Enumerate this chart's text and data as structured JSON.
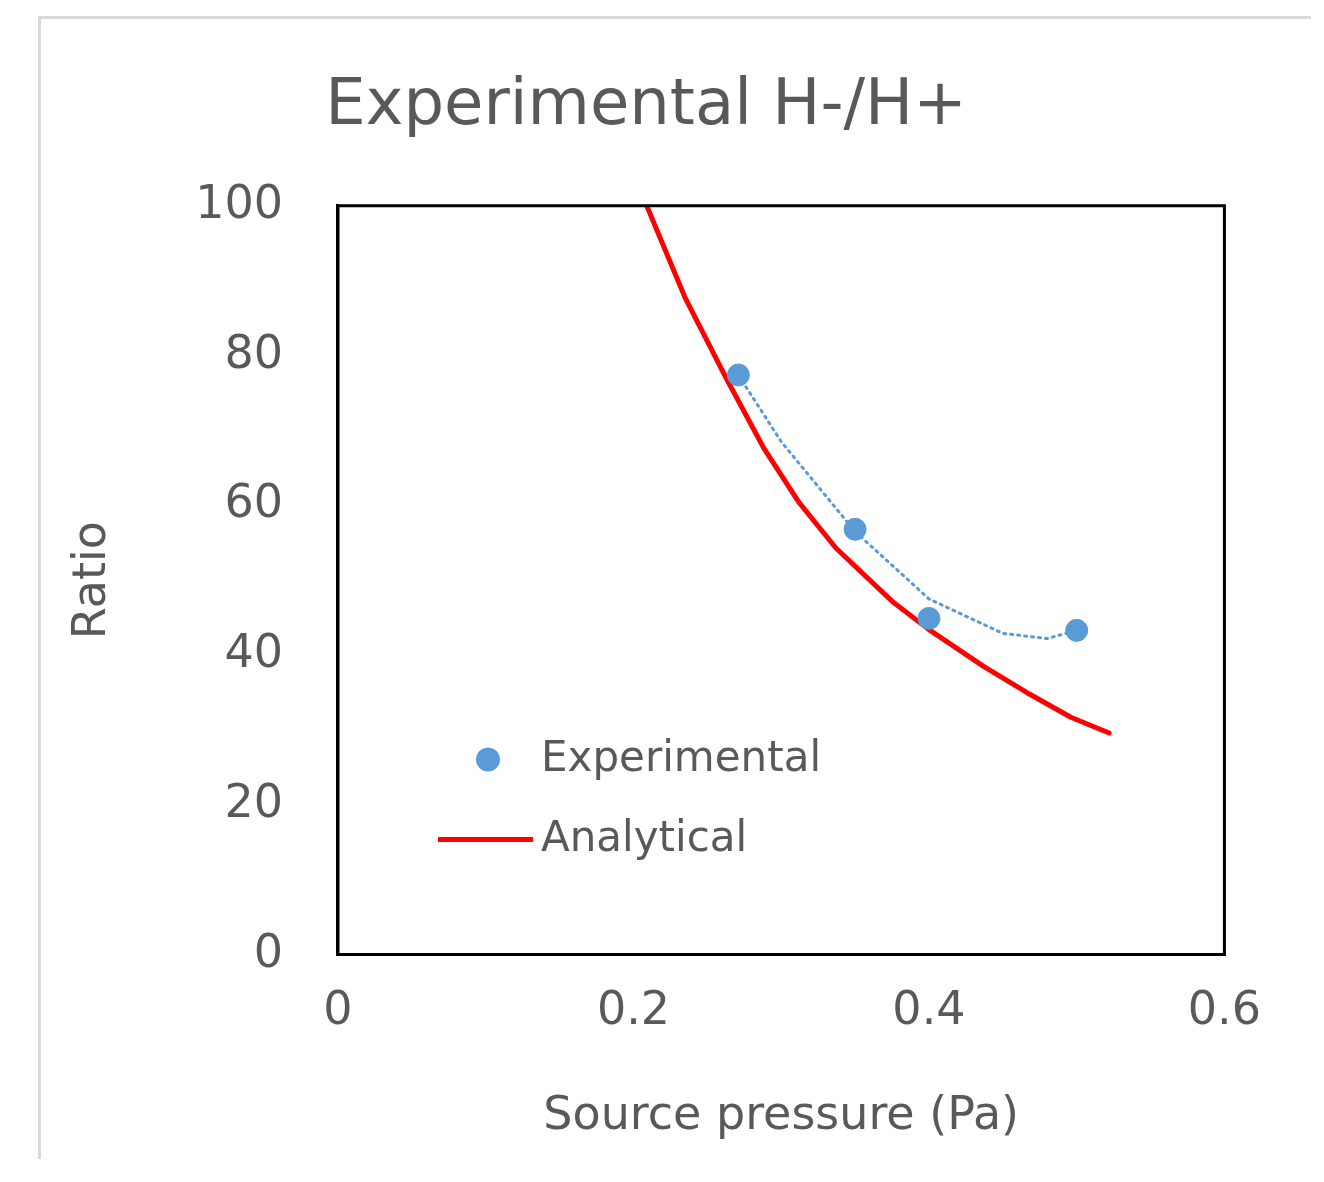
{
  "chart_data": {
    "type": "scatter",
    "title": "Experimental H-/H+",
    "xlabel": "Source pressure (Pa)",
    "ylabel": "Ratio",
    "xlim": [
      0,
      0.6
    ],
    "xticks": [
      0,
      0.2,
      0.4,
      0.6
    ],
    "ylim": [
      0,
      100
    ],
    "yticks": [
      0,
      20,
      40,
      60,
      80,
      100
    ],
    "grid": false,
    "legend": "bottom left",
    "marker": "circle",
    "series": [
      {
        "name": "Experimental",
        "type": "scatter",
        "color": "#5b9bd5",
        "x": [
          0.271,
          0.35,
          0.4,
          0.5
        ],
        "values": [
          77.4,
          56.8,
          44.9,
          43.3
        ]
      },
      {
        "type": "line",
        "line_style": "dotted",
        "marker": "none",
        "color": "#5b9bd5",
        "x": [
          0.271,
          0.3,
          0.35,
          0.4,
          0.45,
          0.48,
          0.5
        ],
        "values": [
          77.4,
          68.5,
          56.5,
          47.5,
          42.9,
          42.2,
          43.3
        ]
      },
      {
        "name": "Analytical",
        "type": "line",
        "line_style": "solid",
        "marker": "none",
        "color": "#ff0000",
        "x": [
          0.209,
          0.235,
          0.263,
          0.288,
          0.312,
          0.337,
          0.375,
          0.4,
          0.437,
          0.468,
          0.496,
          0.522
        ],
        "values": [
          100,
          87.7,
          76.9,
          67.7,
          60.4,
          54.3,
          47.2,
          43.4,
          38.5,
          34.8,
          31.7,
          29.6
        ]
      }
    ]
  }
}
